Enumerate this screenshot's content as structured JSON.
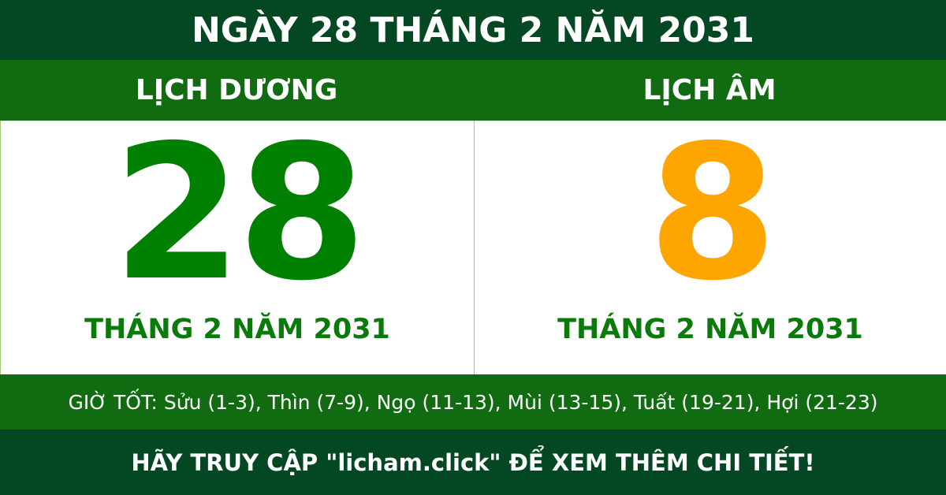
{
  "title": "NGÀY 28 THÁNG 2 NĂM 2031",
  "solar": {
    "heading": "LỊCH DƯƠNG",
    "day": "28",
    "month_year": "THÁNG 2 NĂM 2031"
  },
  "lunar": {
    "heading": "LỊCH ÂM",
    "day": "8",
    "month_year": "THÁNG 2 NĂM 2031"
  },
  "good_hours": "GIỜ TỐT: Sửu (1-3), Thìn (7-9), Ngọ (11-13), Mùi (13-15), Tuất (19-21), Hợi (21-23)",
  "footer": "HÃY TRUY CẬP \"licham.click\" ĐỂ XEM THÊM CHI TIẾT!",
  "colors": {
    "dark_green": "#034822",
    "green": "#116c11",
    "solar_day": "#008000",
    "lunar_day": "#ffa500"
  }
}
